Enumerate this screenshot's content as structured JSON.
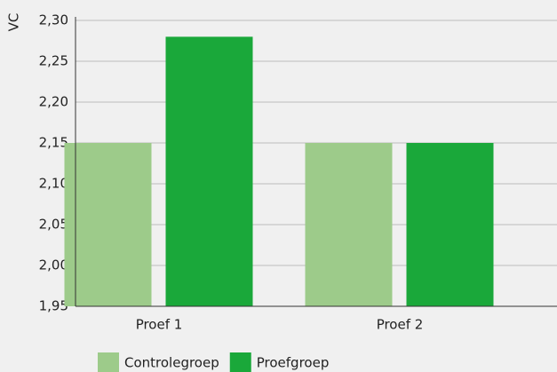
{
  "chart_data": {
    "type": "bar",
    "y_label": "VC",
    "categories": [
      "Proef 1",
      "Proef 2"
    ],
    "series": [
      {
        "name": "Controlegroep",
        "color": "#9dcb8a",
        "values": [
          2.15,
          2.15
        ]
      },
      {
        "name": "Proefgroep",
        "color": "#1aa83a",
        "values": [
          2.28,
          2.15
        ]
      }
    ],
    "ylim": [
      1.95,
      2.3
    ],
    "yticks": [
      {
        "value": 1.95,
        "label": "1,95"
      },
      {
        "value": 2.0,
        "label": "2,00"
      },
      {
        "value": 2.05,
        "label": "2,05"
      },
      {
        "value": 2.1,
        "label": "2,10"
      },
      {
        "value": 2.15,
        "label": "2,15"
      },
      {
        "value": 2.2,
        "label": "2,20"
      },
      {
        "value": 2.25,
        "label": "2,25"
      },
      {
        "value": 2.3,
        "label": "2,30"
      }
    ],
    "grid": true
  }
}
